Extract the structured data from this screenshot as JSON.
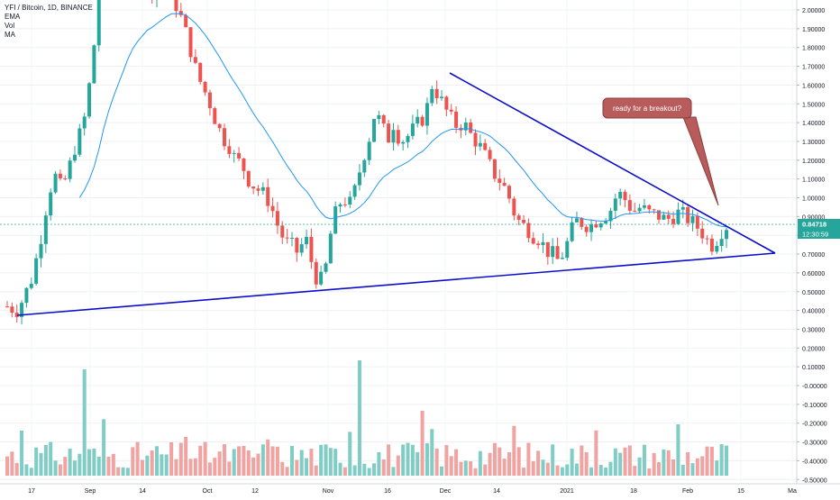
{
  "header": {
    "symbol_line": "YFI / Bitcoin, 1D, BINANCE",
    "indicators": [
      "EMA",
      "Vol",
      "MA"
    ]
  },
  "chart_data": {
    "type": "candlestick",
    "symbol": "YFI / Bitcoin",
    "interval": "1D",
    "exchange": "BINANCE",
    "y_axis": {
      "ticks": [
        "2.00000",
        "1.90000",
        "1.80000",
        "1.70000",
        "1.60000",
        "1.50000",
        "1.40000",
        "1.30000",
        "1.20000",
        "1.10000",
        "1.00000",
        "0.90000",
        "0.80000",
        "0.70000",
        "0.60000",
        "0.50000",
        "0.40000",
        "0.30000",
        "0.20000",
        "0.10000",
        "-0.00000",
        "-0.10000",
        "-0.20000",
        "-0.30000",
        "-0.40000",
        "-0.50000"
      ]
    },
    "x_axis": {
      "ticks": [
        "17",
        "Sep",
        "14",
        "Oct",
        "12",
        "Nov",
        "16",
        "Dec",
        "14",
        "2021",
        "18",
        "Feb",
        "15",
        "Ma"
      ]
    },
    "last_price": {
      "value": "0.84718",
      "countdown": "12:30:59"
    },
    "annotation": {
      "text": "ready for a breakout?"
    },
    "colors": {
      "up": "#26a69a",
      "down": "#ef5350",
      "up_volume": "#7fcdc4",
      "down_volume": "#f0a3a1",
      "ema": "#2196f3",
      "trendline": "#0d0ec9",
      "callout_fill": "#b85b5b",
      "price_label_bg": "#26a69a"
    },
    "price_range": [
      0.3,
      2.04
    ],
    "volume_note": "histogram in lower pane, teal for up days, salmon for down days",
    "trendlines": [
      {
        "name": "descending resistance",
        "from": {
          "date": "2020-12-01",
          "price": 1.66
        },
        "to": {
          "date": "2021-02-23",
          "price": 0.69
        }
      },
      {
        "name": "ascending support",
        "from": {
          "date": "2020-08-15",
          "price": 0.35
        },
        "to": {
          "date": "2021-02-23",
          "price": 0.69
        }
      }
    ]
  }
}
